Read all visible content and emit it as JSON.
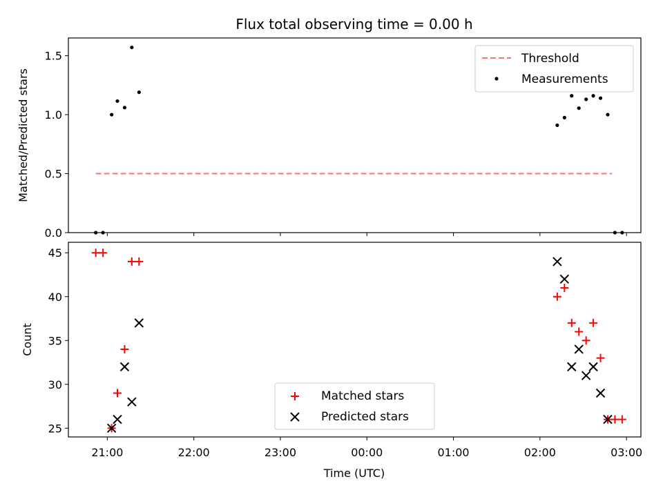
{
  "chart_data": [
    {
      "type": "scatter",
      "title": "Flux total observing time = 0.00 h",
      "xlabel": "",
      "ylabel": "Matched/Predicted stars",
      "ylim": [
        0,
        1.65
      ],
      "yticks": [
        "0.0",
        "0.5",
        "1.0",
        "1.5"
      ],
      "legend_position": "upper right",
      "series": [
        {
          "name": "Threshold",
          "style": "dashed-line",
          "color": "#ff7070",
          "x": [
            "20:52",
            "02:50"
          ],
          "y": [
            0.5,
            0.5
          ]
        },
        {
          "name": "Measurements",
          "style": "dot",
          "color": "#000000",
          "x": [
            "20:52",
            "20:57",
            "21:03",
            "21:07",
            "21:12",
            "21:17",
            "21:22",
            "02:12",
            "02:17",
            "02:22",
            "02:27",
            "02:32",
            "02:37",
            "02:42",
            "02:47",
            "02:52",
            "02:57"
          ],
          "y": [
            0.0,
            0.0,
            1.0,
            1.115,
            1.06,
            1.57,
            1.19,
            0.91,
            0.975,
            1.16,
            1.055,
            1.13,
            1.16,
            1.14,
            1.0,
            0.0,
            0.0
          ]
        }
      ]
    },
    {
      "type": "scatter",
      "xlabel": "Time (UTC)",
      "ylabel": "Count",
      "ylim": [
        24,
        46.2
      ],
      "yticks": [
        "25",
        "30",
        "35",
        "40",
        "45"
      ],
      "xlim": [
        "20:33",
        "03:10"
      ],
      "xticks": [
        "21:00",
        "22:00",
        "23:00",
        "00:00",
        "01:00",
        "02:00",
        "03:00"
      ],
      "legend_position": "lower center",
      "series": [
        {
          "name": "Matched stars",
          "style": "plus",
          "color": "#ff0000",
          "x": [
            "20:52",
            "20:57",
            "21:03",
            "21:07",
            "21:12",
            "21:17",
            "21:22",
            "02:12",
            "02:17",
            "02:22",
            "02:27",
            "02:32",
            "02:37",
            "02:42",
            "02:47",
            "02:52",
            "02:57"
          ],
          "y": [
            45,
            45,
            25,
            29,
            34,
            44,
            44,
            40,
            41,
            37,
            36,
            35,
            37,
            33,
            26,
            26,
            26
          ]
        },
        {
          "name": "Predicted stars",
          "style": "x",
          "color": "#000000",
          "x": [
            "21:03",
            "21:07",
            "21:12",
            "21:17",
            "21:22",
            "02:12",
            "02:17",
            "02:22",
            "02:27",
            "02:32",
            "02:37",
            "02:42",
            "02:47"
          ],
          "y": [
            25,
            26,
            32,
            28,
            37,
            44,
            42,
            32,
            34,
            31,
            32,
            29,
            26
          ]
        }
      ]
    }
  ]
}
